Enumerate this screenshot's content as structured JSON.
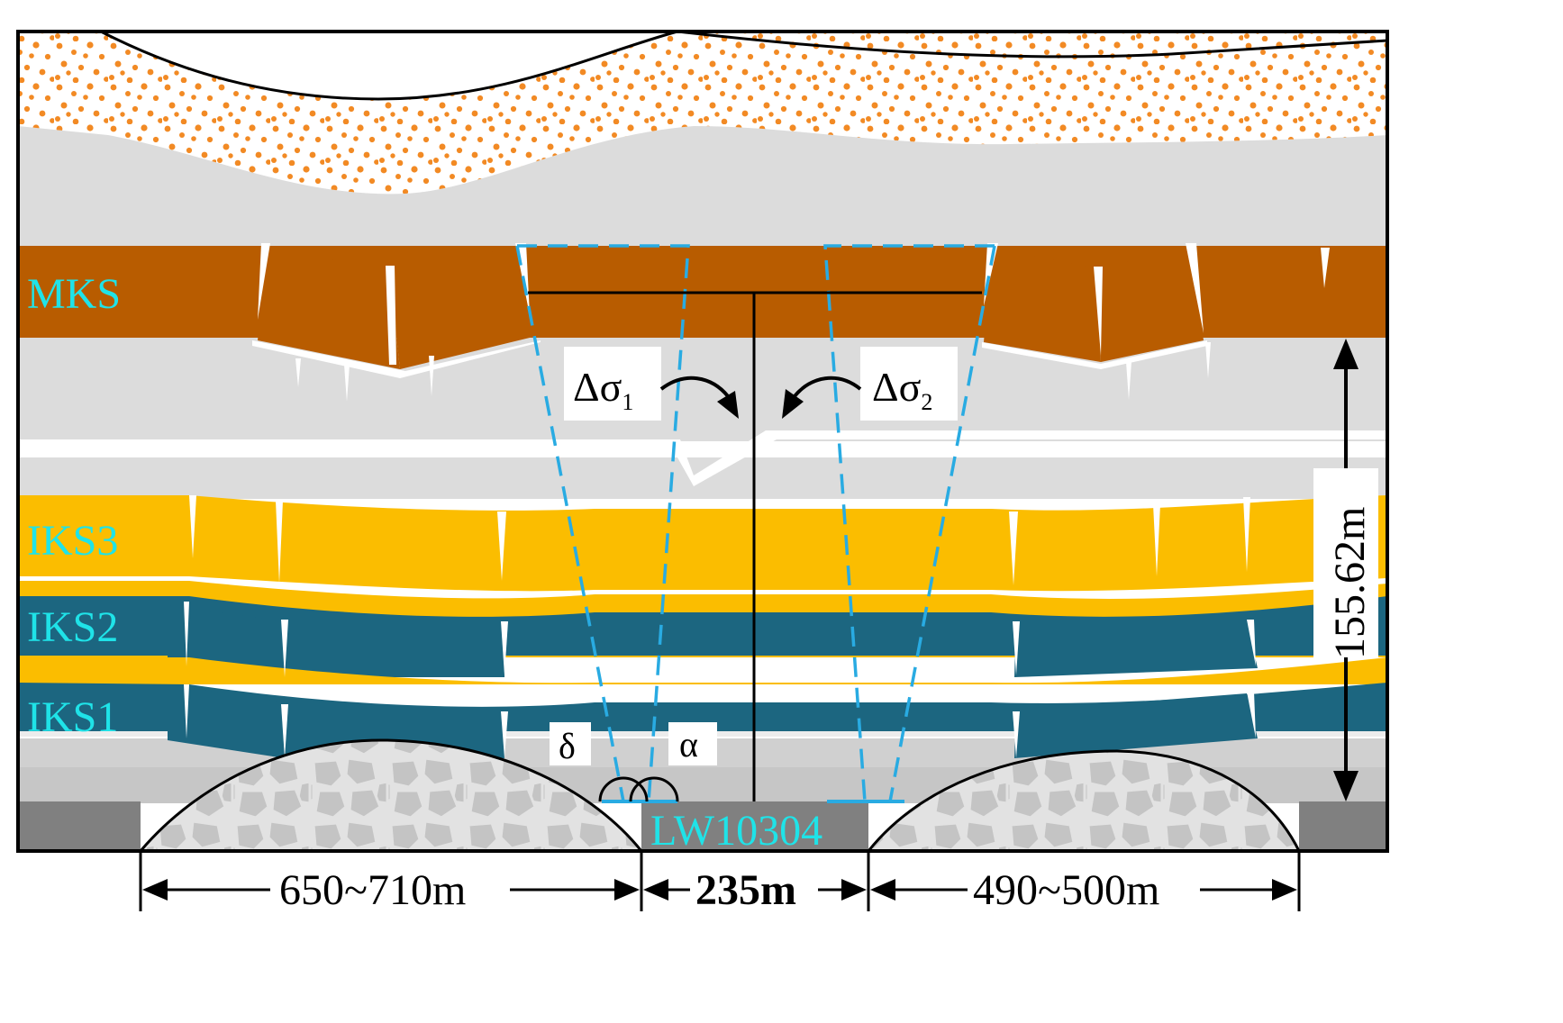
{
  "layers": [
    {
      "label": "MKS",
      "color": "#b85c00"
    },
    {
      "label": "IKS3",
      "color": "#fbbd00"
    },
    {
      "label": "IKS2",
      "color": "#1c6680"
    },
    {
      "label": "IKS1",
      "color": "#1c6680"
    }
  ],
  "colors": {
    "label_text": "#1fe3e8",
    "loose_layer_dots": "#f28a24",
    "rock_light": "#dcdcdc",
    "rock_mid": "#cfcfcf",
    "coal_pillar": "#808080",
    "boundary_dashed": "#29abe2",
    "goaf_fill": "#e2e2e2"
  },
  "stress": {
    "left": {
      "symbol": "Δσ",
      "subscript": "1"
    },
    "right": {
      "symbol": "Δσ",
      "subscript": "2"
    }
  },
  "angles": {
    "left": "δ",
    "right": "α"
  },
  "height_label": "155.62m",
  "panel_label": "LW10304",
  "dimensions": {
    "left": "650~710m",
    "middle": "235m",
    "right": "490~500m"
  }
}
